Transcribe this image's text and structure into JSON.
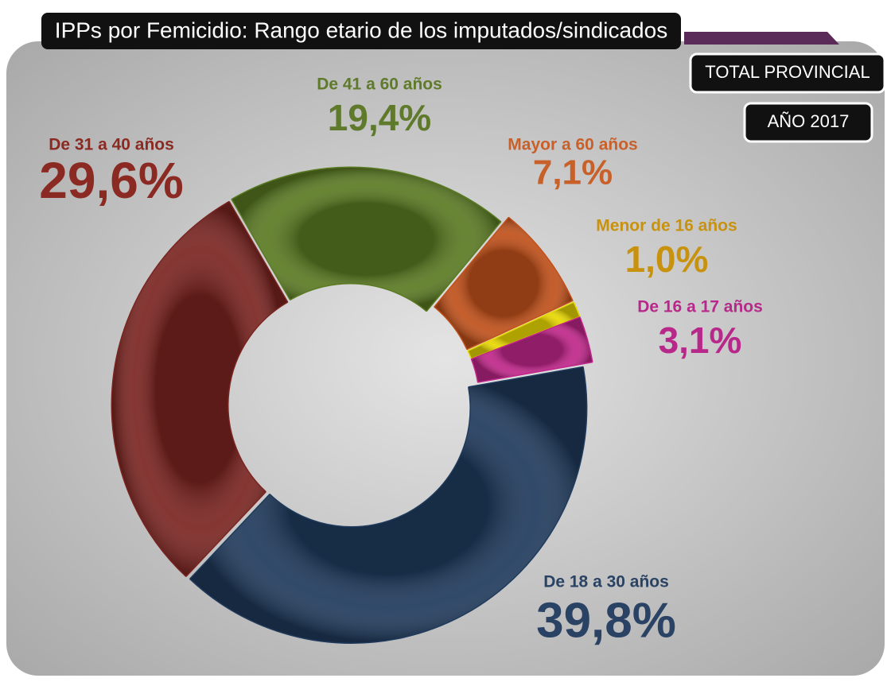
{
  "chart_data": {
    "type": "donut",
    "title": "IPPs por Femicidio: Rango etario de los imputados/sindicados",
    "badges": [
      "TOTAL PROVINCIAL",
      "AÑO 2017"
    ],
    "categories": [
      "De 18 a 30 años",
      "De 31 a 40 años",
      "De 41 a 60 años",
      "Mayor a 60 años",
      "Menor de 16 años",
      "De 16 a 17 años"
    ],
    "values": [
      39.8,
      29.6,
      19.4,
      7.1,
      1.0,
      3.1
    ],
    "value_labels": [
      "39,8%",
      "29,6%",
      "19,4%",
      "7,1%",
      "1,0%",
      "3,1%"
    ],
    "colors": [
      "#1f3a5c",
      "#7a2420",
      "#5a7a22",
      "#c0501a",
      "#e8d800",
      "#c0268a"
    ],
    "label_colors": [
      "#2a4364",
      "#8b2a22",
      "#5f7a2a",
      "#c8602a",
      "#c8920e",
      "#b8288a"
    ]
  }
}
